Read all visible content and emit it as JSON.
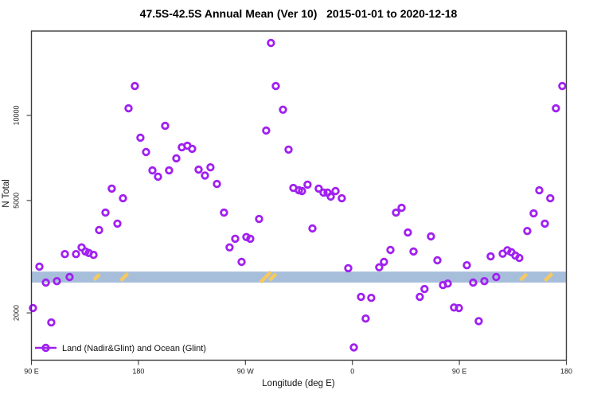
{
  "chart_data": {
    "type": "scatter",
    "title": "47.5S-42.5S Annual Mean (Ver 10)   2015-01-01 to 2020-12-18",
    "xlabel": "Longitude (deg E)",
    "ylabel": "N Total",
    "grid": "off",
    "legend_position": "bottom-left-inside",
    "x_axis": {
      "span_deg": 450,
      "ticks": [
        {
          "deg": 0,
          "label": "90 E"
        },
        {
          "deg": 90,
          "label": "180"
        },
        {
          "deg": 180,
          "label": "90 W"
        },
        {
          "deg": 270,
          "label": "0"
        },
        {
          "deg": 360,
          "label": "90 E"
        },
        {
          "deg": 450,
          "label": "180"
        }
      ]
    },
    "y_axis": {
      "scale": "log",
      "ylim": [
        1360,
        19900
      ],
      "ticks": [
        {
          "value": 2000,
          "label": "2000"
        },
        {
          "value": 5000,
          "label": "5000"
        },
        {
          "value": 10000,
          "label": "10000"
        }
      ]
    },
    "reference_band": {
      "n_min": 2560,
      "n_max": 2800,
      "color": "#A7BEDB",
      "marks_color": "#F6C95F",
      "marks": [
        {
          "deg": 55,
          "w": 7
        },
        {
          "deg": 78,
          "w": 9
        },
        {
          "deg": 197,
          "w": 13
        },
        {
          "deg": 203,
          "w": 8
        },
        {
          "deg": 414,
          "w": 8
        },
        {
          "deg": 435,
          "w": 9
        }
      ]
    },
    "series": [
      {
        "name": "Land (Nadir&Glint) and Ocean (Glint)",
        "marker": "open-circle",
        "color": "#A020F0",
        "points": [
          [
            1.3,
            2080
          ],
          [
            6.7,
            2915
          ],
          [
            12.1,
            2560
          ],
          [
            16.7,
            1850
          ],
          [
            21.4,
            2590
          ],
          [
            28.1,
            3230
          ],
          [
            32.1,
            2680
          ],
          [
            37.5,
            3230
          ],
          [
            42.2,
            3410
          ],
          [
            45.5,
            3300
          ],
          [
            48.2,
            3260
          ],
          [
            52.2,
            3210
          ],
          [
            56.9,
            3930
          ],
          [
            62.3,
            4530
          ],
          [
            67.6,
            5510
          ],
          [
            72.3,
            4140
          ],
          [
            77,
            5090
          ],
          [
            81.7,
            10600
          ],
          [
            87,
            12710
          ],
          [
            91.7,
            8340
          ],
          [
            96.4,
            7420
          ],
          [
            101.8,
            6390
          ],
          [
            106.5,
            6070
          ],
          [
            112.5,
            9190
          ],
          [
            115.8,
            6390
          ],
          [
            121.9,
            7050
          ],
          [
            126.5,
            7710
          ],
          [
            131.2,
            7810
          ],
          [
            135.2,
            7620
          ],
          [
            140.6,
            6430
          ],
          [
            146,
            6130
          ],
          [
            150.6,
            6550
          ],
          [
            156,
            5720
          ],
          [
            162,
            4530
          ],
          [
            166.7,
            3410
          ],
          [
            171.4,
            3660
          ],
          [
            176.8,
            3030
          ],
          [
            180.8,
            3710
          ],
          [
            184.1,
            3660
          ],
          [
            191.5,
            4300
          ],
          [
            197.5,
            8840
          ],
          [
            201.5,
            18050
          ],
          [
            205.6,
            12710
          ],
          [
            211.6,
            10480
          ],
          [
            216.3,
            7570
          ],
          [
            220.3,
            5540
          ],
          [
            225,
            5430
          ],
          [
            227.6,
            5400
          ],
          [
            232.3,
            5690
          ],
          [
            236.4,
            3980
          ],
          [
            241.7,
            5510
          ],
          [
            245.7,
            5330
          ],
          [
            249.1,
            5330
          ],
          [
            251.8,
            5160
          ],
          [
            255.8,
            5400
          ],
          [
            261.1,
            5090
          ],
          [
            266.5,
            2880
          ],
          [
            271.2,
            1510
          ],
          [
            277.2,
            2280
          ],
          [
            281.2,
            1910
          ],
          [
            285.9,
            2260
          ],
          [
            292.6,
            2900
          ],
          [
            296.6,
            3030
          ],
          [
            302,
            3340
          ],
          [
            306.7,
            4530
          ],
          [
            311.4,
            4710
          ],
          [
            316.7,
            3850
          ],
          [
            321.4,
            3300
          ],
          [
            326.7,
            2280
          ],
          [
            330.7,
            2430
          ],
          [
            336.1,
            3730
          ],
          [
            341.5,
            3070
          ],
          [
            346.2,
            2510
          ],
          [
            350.2,
            2540
          ],
          [
            355.5,
            2090
          ],
          [
            359.6,
            2080
          ],
          [
            366.3,
            2950
          ],
          [
            371.6,
            2560
          ],
          [
            376.3,
            1870
          ],
          [
            381,
            2590
          ],
          [
            386.3,
            3170
          ],
          [
            391,
            2680
          ],
          [
            396.4,
            3240
          ],
          [
            400.4,
            3330
          ],
          [
            403.7,
            3280
          ],
          [
            407.1,
            3190
          ],
          [
            410.4,
            3130
          ],
          [
            417.1,
            3900
          ],
          [
            422.5,
            4500
          ],
          [
            427.2,
            5430
          ],
          [
            431.9,
            4140
          ],
          [
            436.5,
            5090
          ],
          [
            441.2,
            10600
          ],
          [
            446.6,
            12710
          ]
        ]
      }
    ]
  }
}
